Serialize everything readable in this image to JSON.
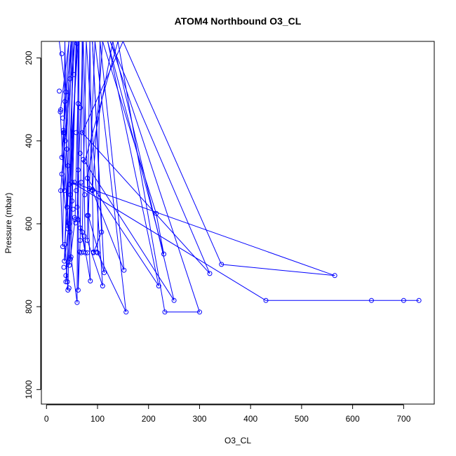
{
  "chart_data": {
    "type": "line",
    "title": "ATOM4 Northbound O3_CL",
    "xlabel": "O3_CL",
    "ylabel": "Pressure (mbar)",
    "xlim": [
      -10,
      760
    ],
    "ylim": [
      1035,
      160
    ],
    "y_reversed": true,
    "x_ticks": [
      0,
      100,
      200,
      300,
      400,
      500,
      600,
      700
    ],
    "y_ticks": [
      200,
      400,
      600,
      800,
      1000
    ],
    "grid": false,
    "legend": "none",
    "colors": {
      "series": "#0000ff",
      "axes": "#000000"
    },
    "series": [
      {
        "marker": "open-circle",
        "points": [
          {
            "x": 25,
            "y": 150
          },
          {
            "x": 38,
            "y": 282
          },
          {
            "x": 30,
            "y": 440
          },
          {
            "x": 44,
            "y": 150
          },
          {
            "x": 27,
            "y": 330
          },
          {
            "x": 35,
            "y": 520
          },
          {
            "x": 48,
            "y": 150
          },
          {
            "x": 33,
            "y": 380
          },
          {
            "x": 40,
            "y": 560
          },
          {
            "x": 55,
            "y": 150
          },
          {
            "x": 30,
            "y": 480
          },
          {
            "x": 42,
            "y": 612
          },
          {
            "x": 36,
            "y": 150
          },
          {
            "x": 32,
            "y": 655
          },
          {
            "x": 28,
            "y": 520
          },
          {
            "x": 50,
            "y": 150
          },
          {
            "x": 35,
            "y": 690
          },
          {
            "x": 44,
            "y": 600
          },
          {
            "x": 60,
            "y": 150
          },
          {
            "x": 38,
            "y": 740
          },
          {
            "x": 46,
            "y": 620
          },
          {
            "x": 52,
            "y": 150
          },
          {
            "x": 42,
            "y": 760
          },
          {
            "x": 36,
            "y": 650
          },
          {
            "x": 62,
            "y": 150
          },
          {
            "x": 60,
            "y": 790
          },
          {
            "x": 48,
            "y": 680
          },
          {
            "x": 58,
            "y": 150
          },
          {
            "x": 45,
            "y": 700
          },
          {
            "x": 56,
            "y": 590
          },
          {
            "x": 64,
            "y": 150
          },
          {
            "x": 62,
            "y": 760
          },
          {
            "x": 66,
            "y": 640
          },
          {
            "x": 70,
            "y": 150
          },
          {
            "x": 76,
            "y": 670
          },
          {
            "x": 60,
            "y": 560
          },
          {
            "x": 72,
            "y": 150
          },
          {
            "x": 86,
            "y": 738
          },
          {
            "x": 70,
            "y": 620
          },
          {
            "x": 78,
            "y": 150
          },
          {
            "x": 110,
            "y": 750
          },
          {
            "x": 80,
            "y": 640
          },
          {
            "x": 85,
            "y": 150
          },
          {
            "x": 92,
            "y": 670
          },
          {
            "x": 108,
            "y": 620
          },
          {
            "x": 90,
            "y": 150
          },
          {
            "x": 113,
            "y": 718
          },
          {
            "x": 82,
            "y": 580
          },
          {
            "x": 95,
            "y": 150
          },
          {
            "x": 156,
            "y": 813
          },
          {
            "x": 100,
            "y": 670
          },
          {
            "x": 105,
            "y": 150
          },
          {
            "x": 152,
            "y": 712
          },
          {
            "x": 90,
            "y": 520
          },
          {
            "x": 110,
            "y": 150
          },
          {
            "x": 215,
            "y": 575
          },
          {
            "x": 230,
            "y": 673
          },
          {
            "x": 120,
            "y": 150
          },
          {
            "x": 220,
            "y": 750
          },
          {
            "x": 80,
            "y": 490
          },
          {
            "x": 130,
            "y": 150
          },
          {
            "x": 250,
            "y": 785
          },
          {
            "x": 75,
            "y": 450
          },
          {
            "x": 140,
            "y": 150
          },
          {
            "x": 232,
            "y": 813
          },
          {
            "x": 300,
            "y": 813
          },
          {
            "x": 125,
            "y": 150
          },
          {
            "x": 320,
            "y": 720
          },
          {
            "x": 70,
            "y": 380
          },
          {
            "x": 150,
            "y": 150
          },
          {
            "x": 343,
            "y": 698
          },
          {
            "x": 565,
            "y": 725
          },
          {
            "x": 50,
            "y": 500
          },
          {
            "x": 430,
            "y": 785
          },
          {
            "x": 637,
            "y": 785
          },
          {
            "x": 700,
            "y": 785
          },
          {
            "x": 730,
            "y": 785
          }
        ]
      }
    ],
    "extra_markers": [
      {
        "x": 25,
        "y": 280
      },
      {
        "x": 28,
        "y": 325
      },
      {
        "x": 32,
        "y": 345
      },
      {
        "x": 35,
        "y": 380
      },
      {
        "x": 37,
        "y": 400
      },
      {
        "x": 40,
        "y": 420
      },
      {
        "x": 42,
        "y": 460
      },
      {
        "x": 45,
        "y": 505
      },
      {
        "x": 47,
        "y": 530
      },
      {
        "x": 50,
        "y": 545
      },
      {
        "x": 52,
        "y": 565
      },
      {
        "x": 55,
        "y": 585
      },
      {
        "x": 57,
        "y": 598
      },
      {
        "x": 34,
        "y": 705
      },
      {
        "x": 38,
        "y": 725
      },
      {
        "x": 41,
        "y": 740
      },
      {
        "x": 44,
        "y": 755
      },
      {
        "x": 47,
        "y": 685
      },
      {
        "x": 65,
        "y": 668
      },
      {
        "x": 68,
        "y": 670
      },
      {
        "x": 72,
        "y": 668
      },
      {
        "x": 80,
        "y": 670
      },
      {
        "x": 92,
        "y": 668
      },
      {
        "x": 98,
        "y": 668
      },
      {
        "x": 55,
        "y": 500
      },
      {
        "x": 58,
        "y": 520
      },
      {
        "x": 62,
        "y": 470
      },
      {
        "x": 66,
        "y": 430
      },
      {
        "x": 72,
        "y": 445
      },
      {
        "x": 84,
        "y": 515
      },
      {
        "x": 89,
        "y": 518
      },
      {
        "x": 60,
        "y": 165
      },
      {
        "x": 30,
        "y": 190
      },
      {
        "x": 33,
        "y": 375
      },
      {
        "x": 36,
        "y": 305
      },
      {
        "x": 62,
        "y": 310
      },
      {
        "x": 66,
        "y": 320
      },
      {
        "x": 54,
        "y": 240
      },
      {
        "x": 46,
        "y": 250
      },
      {
        "x": 58,
        "y": 380
      },
      {
        "x": 68,
        "y": 500
      },
      {
        "x": 75,
        "y": 530
      },
      {
        "x": 80,
        "y": 580
      },
      {
        "x": 62,
        "y": 590
      },
      {
        "x": 66,
        "y": 610
      },
      {
        "x": 74,
        "y": 630
      }
    ]
  }
}
